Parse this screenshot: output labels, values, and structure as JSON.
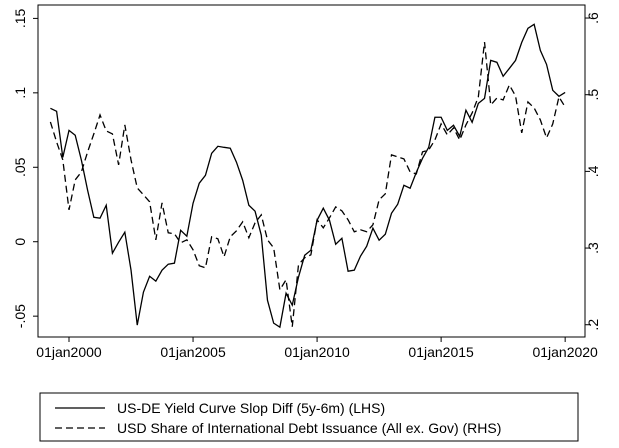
{
  "chart_data": {
    "type": "line",
    "x": [
      1999.25,
      1999.5,
      1999.75,
      2000,
      2000.25,
      2000.5,
      2000.75,
      2001,
      2001.25,
      2001.5,
      2001.75,
      2002,
      2002.25,
      2002.5,
      2002.75,
      2003,
      2003.25,
      2003.5,
      2003.75,
      2004,
      2004.25,
      2004.5,
      2004.75,
      2005,
      2005.25,
      2005.5,
      2005.75,
      2006,
      2006.25,
      2006.5,
      2006.75,
      2007,
      2007.25,
      2007.5,
      2007.75,
      2008,
      2008.25,
      2008.5,
      2008.75,
      2009,
      2009.25,
      2009.5,
      2009.75,
      2010,
      2010.25,
      2010.5,
      2010.75,
      2011,
      2011.25,
      2011.5,
      2011.75,
      2012,
      2012.25,
      2012.5,
      2012.75,
      2013,
      2013.25,
      2013.5,
      2013.75,
      2014,
      2014.25,
      2014.5,
      2014.75,
      2015,
      2015.25,
      2015.5,
      2015.75,
      2016,
      2016.25,
      2016.5,
      2016.75,
      2017,
      2017.25,
      2017.5,
      2017.75,
      2018,
      2018.25,
      2018.5,
      2018.75,
      2019,
      2019.25,
      2019.5,
      2019.75,
      2020
    ],
    "series": [
      {
        "name": "US-DE Yield Curve Slop Diff (5y-6m) (LHS)",
        "color": "#000000",
        "dash": false,
        "values": [
          0.0896,
          0.0876,
          0.0567,
          0.0748,
          0.0715,
          0.0547,
          0.0346,
          0.0164,
          0.0158,
          0.0245,
          -0.0077,
          -0.0003,
          0.0064,
          -0.0191,
          -0.056,
          -0.0339,
          -0.0232,
          -0.0265,
          -0.0191,
          -0.0151,
          -0.0144,
          0.0077,
          0.0037,
          0.0258,
          0.0393,
          0.0446,
          0.0594,
          0.0641,
          0.0634,
          0.0628,
          0.0534,
          0.0413,
          0.0245,
          0.0205,
          0.0044,
          -0.0393,
          -0.0547,
          -0.0574,
          -0.0346,
          -0.0426,
          -0.0238,
          -0.0091,
          -0.0057,
          0.0144,
          0.0225,
          0.0144,
          -0.0017,
          0.0023,
          -0.0198,
          -0.0191,
          -0.0097,
          -0.003,
          0.0091,
          0.001,
          0.005,
          0.0191,
          0.0252,
          0.0379,
          0.0359,
          0.0466,
          0.056,
          0.0634,
          0.0836,
          0.0836,
          0.0748,
          0.0782,
          0.0708,
          0.0883,
          0.0802,
          0.0929,
          0.0963,
          0.1218,
          0.1205,
          0.1111,
          0.1164,
          0.1218,
          0.1339,
          0.1433,
          0.146,
          0.1285,
          0.1191,
          0.1017,
          0.0977,
          0.1003
        ]
      },
      {
        "name": "USD Share of International Debt Issuance (All ex. Gov) (RHS)",
        "color": "#000000",
        "dash": true,
        "axis": "y2",
        "values": [
          0.4645,
          0.4384,
          0.415,
          0.3498,
          0.3889,
          0.3993,
          0.4254,
          0.4489,
          0.4736,
          0.4528,
          0.4489,
          0.4085,
          0.4606,
          0.415,
          0.3785,
          0.3694,
          0.3603,
          0.3107,
          0.359,
          0.3199,
          0.3186,
          0.3068,
          0.3107,
          0.2977,
          0.2769,
          0.2743,
          0.3147,
          0.3121,
          0.2886,
          0.3147,
          0.3225,
          0.3342,
          0.3134,
          0.3329,
          0.3433,
          0.3107,
          0.3003,
          0.2456,
          0.2586,
          0.1974,
          0.2782,
          0.2873,
          0.2912,
          0.3368,
          0.3264,
          0.3394,
          0.3537,
          0.3485,
          0.3368,
          0.3212,
          0.3238,
          0.3212,
          0.3303,
          0.3629,
          0.3707,
          0.4215,
          0.4189,
          0.4163,
          0.3993,
          0.3967,
          0.4254,
          0.428,
          0.441,
          0.4619,
          0.4476,
          0.4567,
          0.441,
          0.4606,
          0.4762,
          0.4971,
          0.5687,
          0.4866,
          0.4958,
          0.4932,
          0.5127,
          0.4984,
          0.4502,
          0.4906,
          0.4827,
          0.4671,
          0.4437,
          0.4619,
          0.4971,
          0.484
        ]
      }
    ],
    "xlim": [
      1998.75,
      2020.8
    ],
    "xticks": [
      {
        "value": 2000,
        "label": "01jan2000"
      },
      {
        "value": 2005,
        "label": "01jan2005"
      },
      {
        "value": 2010,
        "label": "01jan2010"
      },
      {
        "value": 2015,
        "label": "01jan2015"
      },
      {
        "value": 2020,
        "label": "01jan2020"
      }
    ],
    "ylim": [
      -0.064,
      0.159
    ],
    "yticks": [
      {
        "value": -0.05,
        "label": "-.05"
      },
      0,
      {
        "value": 0.05,
        "label": ".05"
      },
      {
        "value": 0.1,
        "label": ".1"
      },
      {
        "value": 0.15,
        "label": ".15"
      }
    ],
    "y2lim": [
      0.184,
      0.617
    ],
    "y2ticks": [
      {
        "value": 0.2,
        "label": ".2"
      },
      {
        "value": 0.3,
        "label": ".3"
      },
      {
        "value": 0.4,
        "label": ".4"
      },
      {
        "value": 0.5,
        "label": ".5"
      },
      {
        "value": 0.6,
        "label": ".6"
      }
    ],
    "legend": "bottom"
  }
}
